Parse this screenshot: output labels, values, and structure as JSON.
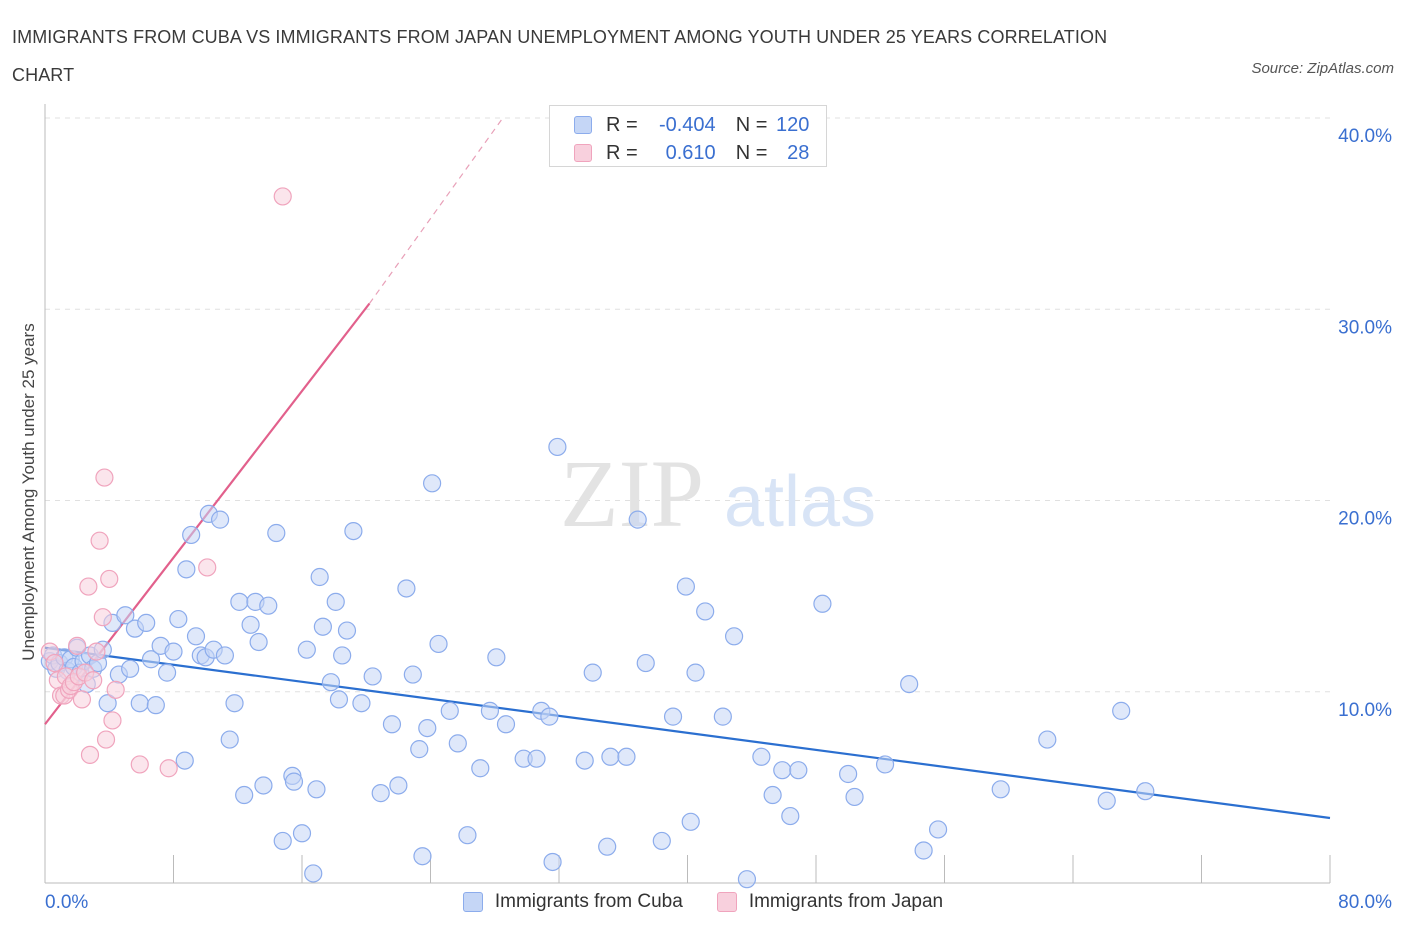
{
  "header": {
    "title": "IMMIGRANTS FROM CUBA VS IMMIGRANTS FROM JAPAN UNEMPLOYMENT AMONG YOUTH UNDER 25 YEARS CORRELATION CHART",
    "source": "Source: ZipAtlas.com"
  },
  "watermark": {
    "zip": "ZIP",
    "atlas": "atlas"
  },
  "legend": {
    "r_label": "R =",
    "n_label": "N =",
    "cuba": {
      "r": "-0.404",
      "n": "120"
    },
    "japan": {
      "r": "0.610",
      "n": "28"
    }
  },
  "colors": {
    "cuba_fill": "#c5d6f6",
    "cuba_stroke": "#8cacec",
    "cuba_line": "#2b6fd0",
    "japan_fill": "#f8d0dd",
    "japan_stroke": "#f0a4bd",
    "japan_line": "#e2608c",
    "axis_text": "#3a6fd0",
    "grid": "#e0e0e0"
  },
  "chart_data": {
    "type": "scatter",
    "title": "IMMIGRANTS FROM CUBA VS IMMIGRANTS FROM JAPAN UNEMPLOYMENT AMONG YOUTH UNDER 25 YEARS CORRELATION CHART",
    "xlabel": "",
    "ylabel": "Unemployment Among Youth under 25 years",
    "xlim": [
      0,
      80
    ],
    "ylim": [
      0,
      40
    ],
    "x_tick_labels": [
      "0.0%",
      "80.0%"
    ],
    "y_tick_labels": [
      "10.0%",
      "20.0%",
      "30.0%",
      "40.0%"
    ],
    "y_ticks": [
      10,
      20,
      30,
      40
    ],
    "grid": true,
    "legend_position": "top-center",
    "series": [
      {
        "name": "Immigrants from Cuba",
        "points": [
          [
            0.3,
            11.6
          ],
          [
            0.5,
            11.9
          ],
          [
            0.7,
            11.2
          ],
          [
            0.9,
            11.5
          ],
          [
            1.2,
            11.8
          ],
          [
            1.4,
            11.1
          ],
          [
            1.6,
            11.7
          ],
          [
            1.8,
            11.3
          ],
          [
            2.0,
            12.3
          ],
          [
            2.2,
            11.0
          ],
          [
            2.4,
            11.6
          ],
          [
            2.6,
            10.4
          ],
          [
            2.8,
            11.9
          ],
          [
            3.0,
            11.2
          ],
          [
            3.3,
            11.5
          ],
          [
            3.6,
            12.2
          ],
          [
            3.9,
            9.4
          ],
          [
            4.2,
            13.6
          ],
          [
            4.6,
            10.9
          ],
          [
            5.0,
            14.0
          ],
          [
            5.3,
            11.2
          ],
          [
            5.6,
            13.3
          ],
          [
            5.9,
            9.4
          ],
          [
            6.3,
            13.6
          ],
          [
            6.6,
            11.7
          ],
          [
            6.9,
            9.3
          ],
          [
            7.2,
            12.4
          ],
          [
            7.6,
            11.0
          ],
          [
            8.0,
            12.1
          ],
          [
            8.3,
            13.8
          ],
          [
            8.7,
            6.4
          ],
          [
            8.8,
            16.4
          ],
          [
            9.1,
            18.2
          ],
          [
            9.4,
            12.9
          ],
          [
            9.7,
            11.9
          ],
          [
            10.0,
            11.8
          ],
          [
            10.2,
            19.3
          ],
          [
            10.5,
            12.2
          ],
          [
            10.9,
            19.0
          ],
          [
            11.2,
            11.9
          ],
          [
            11.5,
            7.5
          ],
          [
            11.8,
            9.4
          ],
          [
            12.1,
            14.7
          ],
          [
            12.4,
            4.6
          ],
          [
            12.8,
            13.5
          ],
          [
            13.1,
            14.7
          ],
          [
            13.3,
            12.6
          ],
          [
            13.6,
            5.1
          ],
          [
            13.9,
            14.5
          ],
          [
            14.4,
            18.3
          ],
          [
            14.8,
            2.2
          ],
          [
            15.4,
            5.6
          ],
          [
            15.5,
            5.3
          ],
          [
            16.0,
            2.6
          ],
          [
            16.3,
            12.2
          ],
          [
            16.7,
            0.5
          ],
          [
            16.9,
            4.9
          ],
          [
            17.1,
            16.0
          ],
          [
            17.3,
            13.4
          ],
          [
            17.8,
            10.5
          ],
          [
            18.1,
            14.7
          ],
          [
            18.3,
            9.6
          ],
          [
            18.5,
            11.9
          ],
          [
            18.8,
            13.2
          ],
          [
            19.2,
            18.4
          ],
          [
            19.7,
            9.4
          ],
          [
            20.4,
            10.8
          ],
          [
            20.9,
            4.7
          ],
          [
            21.6,
            8.3
          ],
          [
            22.0,
            5.1
          ],
          [
            22.5,
            15.4
          ],
          [
            22.9,
            10.9
          ],
          [
            23.3,
            7.0
          ],
          [
            23.5,
            1.4
          ],
          [
            23.8,
            8.1
          ],
          [
            24.1,
            20.9
          ],
          [
            24.5,
            12.5
          ],
          [
            25.2,
            9.0
          ],
          [
            25.7,
            7.3
          ],
          [
            26.3,
            2.5
          ],
          [
            27.1,
            6.0
          ],
          [
            27.7,
            9.0
          ],
          [
            28.1,
            11.8
          ],
          [
            28.7,
            8.3
          ],
          [
            29.8,
            6.5
          ],
          [
            30.6,
            6.5
          ],
          [
            30.9,
            9.0
          ],
          [
            31.4,
            8.7
          ],
          [
            31.6,
            1.1
          ],
          [
            31.9,
            22.8
          ],
          [
            33.6,
            6.4
          ],
          [
            34.1,
            11.0
          ],
          [
            35.0,
            1.9
          ],
          [
            35.2,
            6.6
          ],
          [
            36.2,
            6.6
          ],
          [
            36.9,
            19.0
          ],
          [
            37.4,
            11.5
          ],
          [
            38.4,
            2.2
          ],
          [
            39.1,
            8.7
          ],
          [
            39.9,
            15.5
          ],
          [
            40.2,
            3.2
          ],
          [
            40.5,
            11.0
          ],
          [
            41.1,
            14.2
          ],
          [
            42.2,
            8.7
          ],
          [
            42.9,
            12.9
          ],
          [
            43.7,
            0.2
          ],
          [
            44.6,
            6.6
          ],
          [
            45.3,
            4.6
          ],
          [
            45.9,
            5.9
          ],
          [
            46.4,
            3.5
          ],
          [
            46.9,
            5.9
          ],
          [
            48.4,
            14.6
          ],
          [
            50.0,
            5.7
          ],
          [
            50.4,
            4.5
          ],
          [
            52.3,
            6.2
          ],
          [
            53.8,
            10.4
          ],
          [
            54.7,
            1.7
          ],
          [
            55.6,
            2.8
          ],
          [
            59.5,
            4.9
          ],
          [
            62.4,
            7.5
          ],
          [
            66.1,
            4.3
          ],
          [
            67.0,
            9.0
          ],
          [
            68.5,
            4.8
          ]
        ],
        "trend": {
          "x": [
            0,
            80
          ],
          "y": [
            12.3,
            3.4
          ]
        }
      },
      {
        "name": "Immigrants from Japan",
        "points": [
          [
            0.3,
            12.1
          ],
          [
            0.6,
            11.5
          ],
          [
            0.8,
            10.6
          ],
          [
            1.0,
            9.8
          ],
          [
            1.2,
            9.8
          ],
          [
            1.3,
            10.8
          ],
          [
            1.5,
            10.1
          ],
          [
            1.6,
            10.3
          ],
          [
            1.8,
            10.5
          ],
          [
            2.0,
            12.4
          ],
          [
            2.1,
            10.8
          ],
          [
            2.3,
            9.6
          ],
          [
            2.5,
            11.0
          ],
          [
            2.7,
            15.5
          ],
          [
            2.8,
            6.7
          ],
          [
            3.0,
            10.6
          ],
          [
            3.2,
            12.1
          ],
          [
            3.4,
            17.9
          ],
          [
            3.6,
            13.9
          ],
          [
            3.7,
            21.2
          ],
          [
            3.8,
            7.5
          ],
          [
            4.0,
            15.9
          ],
          [
            4.2,
            8.5
          ],
          [
            4.4,
            10.1
          ],
          [
            5.9,
            6.2
          ],
          [
            7.7,
            6.0
          ],
          [
            10.1,
            16.5
          ],
          [
            14.8,
            35.9
          ]
        ],
        "trend": {
          "x": [
            0,
            20.2
          ],
          "y": [
            8.3,
            30.3
          ]
        },
        "trend_extension": {
          "x": [
            20.2,
            28.5
          ],
          "y": [
            30.3,
            40.0
          ]
        }
      }
    ]
  }
}
